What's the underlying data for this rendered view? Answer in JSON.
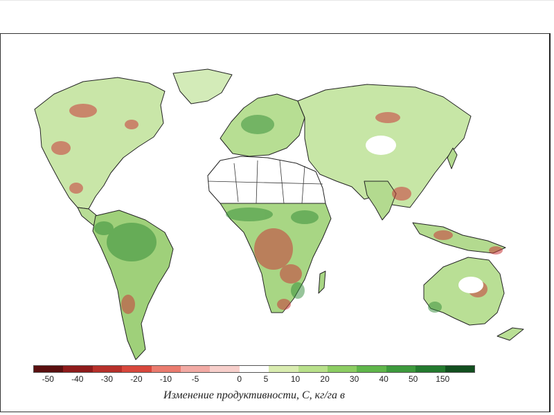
{
  "legend": {
    "caption": "Изменение продуктивности, С, кг/га в",
    "ticks": [
      "-50",
      "-40",
      "-30",
      "-20",
      "-10",
      "-5",
      "0",
      "5",
      "10",
      "20",
      "30",
      "40",
      "50",
      "150"
    ],
    "colors": [
      "#5a0f0f",
      "#8e1b1b",
      "#b7302a",
      "#d8473c",
      "#ea7b6e",
      "#f2aaa4",
      "#f7cfcb",
      "#ffffff",
      "#d9ecb0",
      "#b8e08a",
      "#8ccd62",
      "#5fb64a",
      "#3d9a3c",
      "#237a2e",
      "#124f1f"
    ]
  },
  "colors": {
    "land_base": "#c9e6a8",
    "desert": "#ffffff",
    "border": "#222222",
    "loss": "#c9393a",
    "gain": "#2f8a35"
  }
}
